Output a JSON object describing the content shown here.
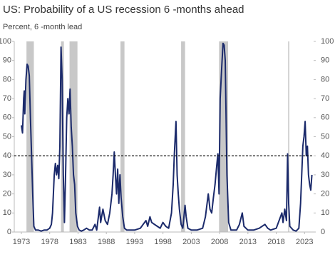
{
  "chart_data": {
    "type": "line",
    "title": "US: Probability of a US recession 6 -months ahead",
    "subtitle": "Percent, 6 -month lead",
    "x": [
      1973.0,
      1973.2,
      1973.4,
      1973.5,
      1973.6,
      1973.8,
      1974.0,
      1974.2,
      1974.4,
      1974.6,
      1974.8,
      1975.0,
      1975.2,
      1975.5,
      1976.0,
      1976.5,
      1977.0,
      1977.5,
      1978.0,
      1978.3,
      1978.5,
      1978.8,
      1979.0,
      1979.2,
      1979.4,
      1979.6,
      1979.8,
      1980.0,
      1980.2,
      1980.4,
      1980.6,
      1980.8,
      1981.0,
      1981.2,
      1981.4,
      1981.6,
      1981.8,
      1982.0,
      1982.2,
      1982.4,
      1982.6,
      1982.9,
      1983.2,
      1983.6,
      1984.0,
      1984.5,
      1985.0,
      1985.5,
      1986.0,
      1986.3,
      1986.8,
      1987.0,
      1987.4,
      1987.8,
      1988.2,
      1988.6,
      1989.0,
      1989.2,
      1989.4,
      1989.6,
      1989.8,
      1990.0,
      1990.2,
      1990.4,
      1990.6,
      1990.9,
      1991.2,
      1991.6,
      1992.0,
      1993.0,
      1994.0,
      1994.5,
      1995.0,
      1995.3,
      1995.7,
      1996.0,
      1996.5,
      1997.0,
      1997.5,
      1998.0,
      1998.5,
      1999.0,
      1999.5,
      1999.8,
      2000.0,
      2000.3,
      2000.5,
      2000.7,
      2000.9,
      2001.2,
      2001.5,
      2001.9,
      2002.1,
      2002.4,
      2003.0,
      2004.0,
      2005.0,
      2005.5,
      2006.0,
      2006.3,
      2006.6,
      2006.9,
      2007.2,
      2007.5,
      2007.7,
      2007.9,
      2008.1,
      2008.4,
      2008.6,
      2008.8,
      2009.0,
      2009.3,
      2009.6,
      2010.0,
      2011.0,
      2011.5,
      2012.0,
      2012.3,
      2013.0,
      2014.0,
      2015.0,
      2016.0,
      2016.5,
      2017.0,
      2018.0,
      2019.0,
      2019.2,
      2019.5,
      2019.8,
      2020.0,
      2020.2,
      2020.4,
      2021.0,
      2021.5,
      2022.0,
      2022.3,
      2022.5,
      2022.7,
      2022.9,
      2023.1,
      2023.3,
      2023.5,
      2023.7,
      2023.9,
      2024.1,
      2024.3
    ],
    "series": [
      {
        "color": "#1b2a6b",
        "values": [
          56,
          52,
          70,
          74,
          62,
          80,
          88,
          87,
          82,
          60,
          40,
          20,
          3,
          1,
          1,
          0.5,
          1,
          1,
          2,
          4,
          10,
          30,
          36,
          30,
          35,
          28,
          45,
          97,
          80,
          30,
          5,
          30,
          60,
          70,
          62,
          75,
          55,
          45,
          30,
          25,
          10,
          3,
          1,
          0.5,
          1,
          2,
          1,
          1,
          4,
          1,
          13,
          5,
          12,
          6,
          4,
          10,
          20,
          30,
          42,
          30,
          20,
          33,
          15,
          30,
          18,
          8,
          2,
          1,
          1,
          1,
          2,
          4,
          6,
          3,
          8,
          5,
          4,
          3,
          2,
          5,
          3,
          2,
          10,
          25,
          40,
          58,
          30,
          20,
          12,
          4,
          2,
          14,
          8,
          2,
          1,
          1,
          2,
          8,
          20,
          12,
          10,
          18,
          25,
          35,
          41,
          20,
          70,
          88,
          99,
          98,
          90,
          30,
          5,
          1,
          1,
          4,
          10,
          3,
          1,
          1,
          2,
          4,
          2,
          1,
          2,
          10,
          5,
          12,
          6,
          41,
          15,
          3,
          1,
          0.5,
          2,
          15,
          30,
          45,
          50,
          58,
          40,
          45,
          30,
          25,
          22,
          30
        ]
      }
    ],
    "recessions": [
      [
        1973.9,
        1975.2
      ],
      [
        1980.0,
        1980.5
      ],
      [
        1981.5,
        1982.9
      ],
      [
        1990.5,
        1991.2
      ],
      [
        2001.2,
        2001.9
      ],
      [
        2007.9,
        2009.5
      ],
      [
        2020.1,
        2020.3
      ]
    ],
    "recession_color": "#c8c8c8",
    "reference_line": 40,
    "xlim": [
      1971.74,
      2024.6
    ],
    "xticks": [
      1973,
      1978,
      1983,
      1988,
      1993,
      1998,
      2003,
      2008,
      2013,
      2018,
      2023
    ],
    "ylim": [
      0,
      100
    ],
    "yticks": [
      0,
      10,
      20,
      30,
      40,
      50,
      60,
      70,
      80,
      90,
      100
    ],
    "y2lim": [
      0,
      100
    ],
    "y2ticks": [
      0,
      10,
      20,
      30,
      40,
      50,
      60,
      70,
      80,
      90,
      100
    ]
  }
}
